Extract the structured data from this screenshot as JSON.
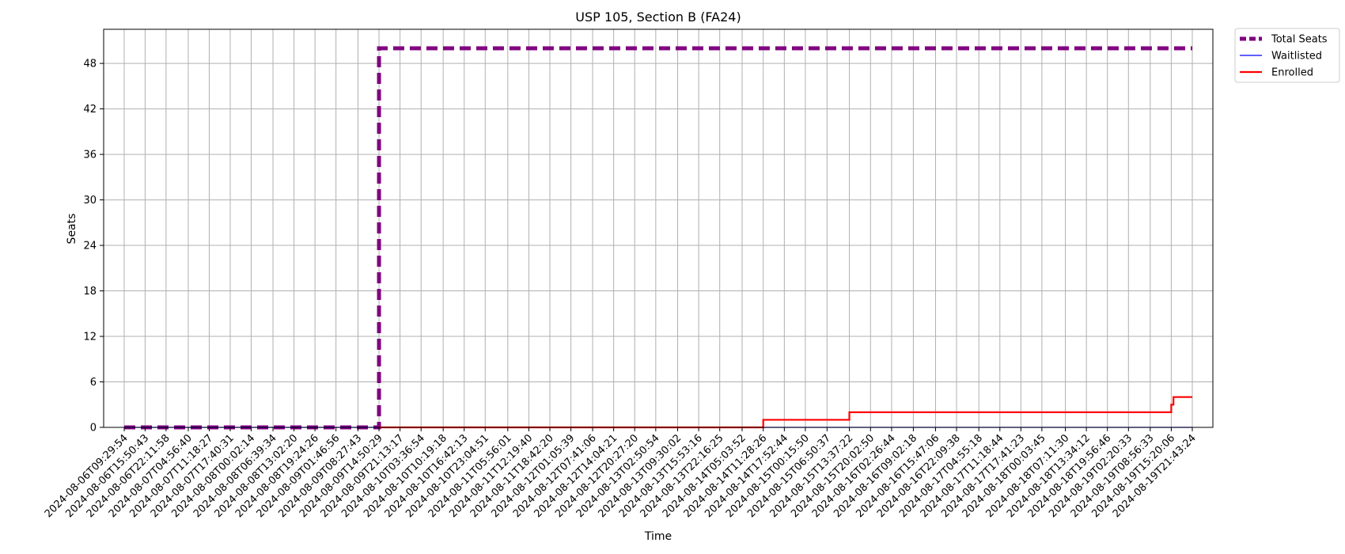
{
  "chart_data": {
    "type": "line",
    "title": "USP 105, Section B (FA24)",
    "xlabel": "Time",
    "ylabel": "Seats",
    "ylim": [
      0,
      52.5
    ],
    "yticks": [
      0,
      6,
      12,
      18,
      24,
      30,
      36,
      42,
      48
    ],
    "grid": true,
    "legend_position": "outside-top-right",
    "x_tick_labels": [
      "2024-08-06T09:29:54",
      "2024-08-06T15:50:43",
      "2024-08-06T22:11:58",
      "2024-08-07T04:56:40",
      "2024-08-07T11:18:27",
      "2024-08-07T17:40:31",
      "2024-08-08T00:02:14",
      "2024-08-08T06:39:34",
      "2024-08-08T13:02:20",
      "2024-08-08T19:24:26",
      "2024-08-09T01:46:56",
      "2024-08-09T08:27:43",
      "2024-08-09T14:50:29",
      "2024-08-09T21:13:17",
      "2024-08-10T03:36:54",
      "2024-08-10T10:19:18",
      "2024-08-10T16:42:13",
      "2024-08-10T23:04:51",
      "2024-08-11T05:56:01",
      "2024-08-11T12:19:40",
      "2024-08-11T18:42:20",
      "2024-08-12T01:05:39",
      "2024-08-12T07:41:06",
      "2024-08-12T14:04:21",
      "2024-08-12T20:27:20",
      "2024-08-13T02:50:54",
      "2024-08-13T09:30:02",
      "2024-08-13T15:53:16",
      "2024-08-13T22:16:25",
      "2024-08-14T05:03:52",
      "2024-08-14T11:28:26",
      "2024-08-14T17:52:44",
      "2024-08-15T00:15:50",
      "2024-08-15T06:50:37",
      "2024-08-15T13:37:22",
      "2024-08-15T20:02:50",
      "2024-08-16T02:26:44",
      "2024-08-16T09:02:18",
      "2024-08-16T15:47:06",
      "2024-08-16T22:09:38",
      "2024-08-17T04:55:18",
      "2024-08-17T11:18:44",
      "2024-08-17T17:41:23",
      "2024-08-18T00:03:45",
      "2024-08-18T07:11:30",
      "2024-08-18T13:34:12",
      "2024-08-18T19:56:46",
      "2024-08-19T02:20:33",
      "2024-08-19T08:56:33",
      "2024-08-19T15:20:06",
      "2024-08-19T21:43:24"
    ],
    "series": [
      {
        "name": "Total Seats",
        "color": "#800080",
        "style": "dashed",
        "steps": [
          {
            "x": "2024-08-06T09:29:54",
            "y": 0
          },
          {
            "x": "2024-08-09T14:50:29",
            "y": 50
          }
        ],
        "end": "2024-08-19T21:43:24"
      },
      {
        "name": "Waitlisted",
        "color": "#0000ff",
        "style": "solid",
        "steps": [
          {
            "x": "2024-08-06T09:29:54",
            "y": 0
          }
        ],
        "end": "2024-08-19T21:43:24"
      },
      {
        "name": "Enrolled",
        "color": "#ff0000",
        "style": "solid",
        "steps": [
          {
            "x": "2024-08-09T14:50:29",
            "y": 0
          },
          {
            "x": "2024-08-14T11:28:26",
            "y": 1
          },
          {
            "x": "2024-08-15T13:37:22",
            "y": 2
          },
          {
            "x": "2024-08-19T15:20:06",
            "y": 3
          },
          {
            "x": "2024-08-19T16:00:00",
            "y": 4
          }
        ],
        "end": "2024-08-19T21:43:24"
      }
    ]
  }
}
